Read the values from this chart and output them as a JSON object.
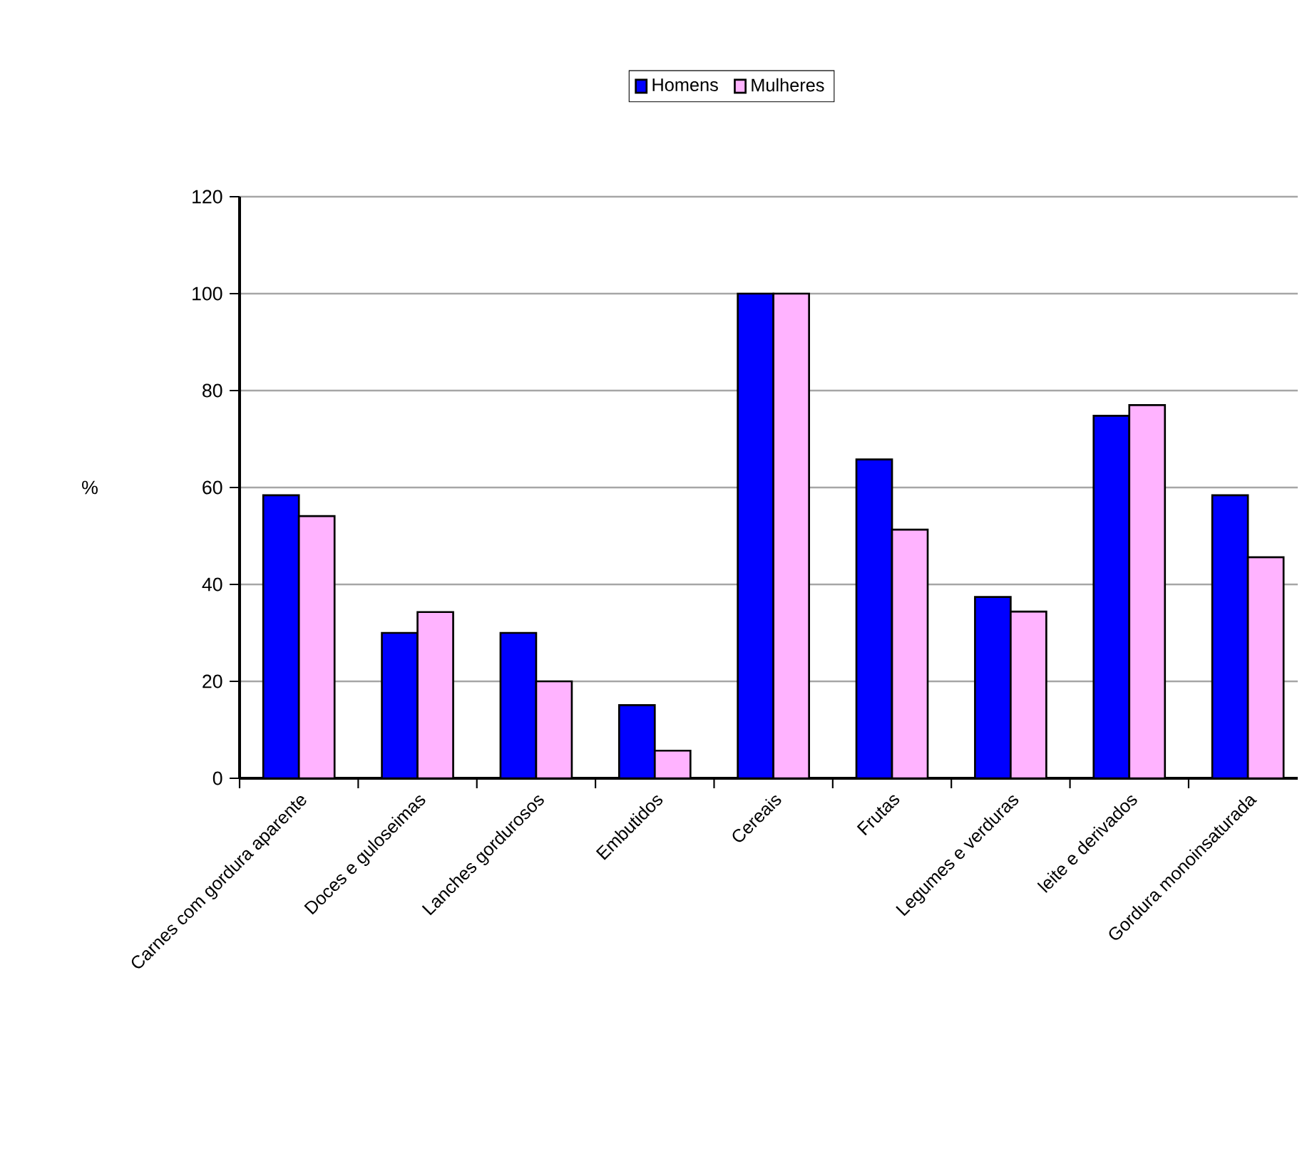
{
  "chart_data": {
    "type": "bar",
    "ylabel": "%",
    "categories": [
      "Carnes com gordura aparente",
      "Doces e guloseimas",
      "Lanches gordurosos",
      "Embutidos",
      "Cereais",
      "Frutas",
      "Legumes e verduras",
      "leite e derivados",
      "Gordura monoinsaturada"
    ],
    "series": [
      {
        "name": "Homens",
        "color": "#0000ff",
        "values": [
          58.4,
          30,
          30,
          15.1,
          100,
          65.8,
          37.4,
          74.8,
          58.4
        ]
      },
      {
        "name": "Mulheres",
        "color": "#ffb3ff",
        "values": [
          54.1,
          34.3,
          20,
          5.7,
          100,
          51.3,
          34.4,
          77,
          45.6
        ]
      }
    ],
    "ylim": [
      0,
      120
    ],
    "yticks": [
      0,
      20,
      40,
      60,
      80,
      100,
      120
    ],
    "grid": "y",
    "legend": "top"
  }
}
